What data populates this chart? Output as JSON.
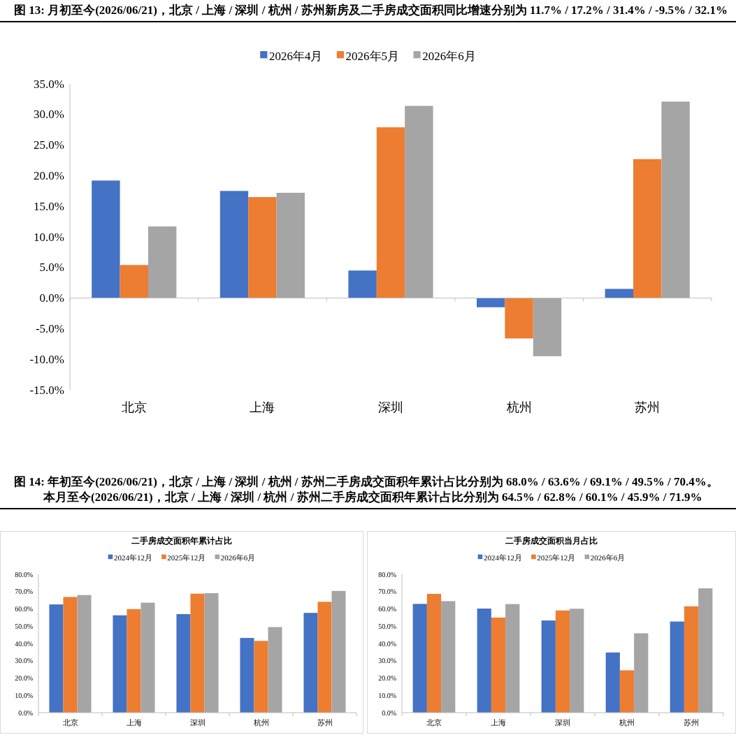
{
  "chart_data": [
    {
      "type": "bar",
      "title": "图 13: 月初至今(2026/06/21)，北京 / 上海 / 深圳 / 杭州 / 苏州新房及二手房成交面积同比增速分别为 11.7% / 17.2% / 31.4% / -9.5% / 32.1%",
      "categories": [
        "北京",
        "上海",
        "深圳",
        "杭州",
        "苏州"
      ],
      "series": [
        {
          "name": "2026年4月",
          "color": "#4472c4",
          "values": [
            19.2,
            17.5,
            4.5,
            -1.5,
            1.5
          ]
        },
        {
          "name": "2026年5月",
          "color": "#ed7d31",
          "values": [
            5.4,
            16.5,
            27.9,
            -6.6,
            22.7
          ]
        },
        {
          "name": "2026年6月",
          "color": "#a5a5a5",
          "values": [
            11.7,
            17.2,
            31.4,
            -9.5,
            32.1
          ]
        }
      ],
      "ylim": [
        -15,
        35
      ],
      "yticks": [
        {
          "value": -15,
          "label": "-15.0%"
        },
        {
          "value": -10,
          "label": "-10.0%"
        },
        {
          "value": -5,
          "label": "-5.0%"
        },
        {
          "value": 0,
          "label": "0.0%"
        },
        {
          "value": 5,
          "label": "5.0%"
        },
        {
          "value": 10,
          "label": "10.0%"
        },
        {
          "value": 15,
          "label": "15.0%"
        },
        {
          "value": 20,
          "label": "20.0%"
        },
        {
          "value": 25,
          "label": "25.0%"
        },
        {
          "value": 30,
          "label": "30.0%"
        },
        {
          "value": 35,
          "label": "35.0%"
        }
      ],
      "legend": "top"
    },
    {
      "type": "bar",
      "title": "图 14: 年初至今(2026/06/21)，北京 / 上海 / 深圳 / 杭州 / 苏州二手房成交面积年累计占比分别为 68.0% / 63.6% / 69.1% / 49.5% / 70.4%。本月至今(2026/06/21)，北京 / 上海 / 深圳 / 杭州 / 苏州二手房成交面积年累计占比分别为 64.5% / 62.8% / 60.1% / 45.9% / 71.9%",
      "subtitle": "二手房成交面积年累计占比",
      "categories": [
        "北京",
        "上海",
        "深圳",
        "杭州",
        "苏州"
      ],
      "series": [
        {
          "name": "2024年12月",
          "color": "#4472c4",
          "values": [
            62.6,
            56.3,
            57.0,
            43.2,
            57.7
          ]
        },
        {
          "name": "2025年12月",
          "color": "#ed7d31",
          "values": [
            66.9,
            59.9,
            68.8,
            41.5,
            64.1
          ]
        },
        {
          "name": "2026年6月",
          "color": "#a5a5a5",
          "values": [
            68.0,
            63.6,
            69.1,
            49.5,
            70.4
          ]
        }
      ],
      "ylim": [
        0,
        80
      ],
      "yticks": [
        {
          "value": 0,
          "label": "0.0%"
        },
        {
          "value": 10,
          "label": "10.0%"
        },
        {
          "value": 20,
          "label": "20.0%"
        },
        {
          "value": 30,
          "label": "30.0%"
        },
        {
          "value": 40,
          "label": "40.0%"
        },
        {
          "value": 50,
          "label": "50.0%"
        },
        {
          "value": 60,
          "label": "60.0%"
        },
        {
          "value": 70,
          "label": "70.0%"
        },
        {
          "value": 80,
          "label": "80.0%"
        }
      ],
      "grid": false,
      "legend": "top"
    },
    {
      "type": "bar",
      "title": "二手房成交面积当月占比",
      "categories": [
        "北京",
        "上海",
        "深圳",
        "杭州",
        "苏州"
      ],
      "series": [
        {
          "name": "2024年12月",
          "color": "#4472c4",
          "values": [
            62.9,
            60.2,
            53.3,
            34.8,
            52.7
          ]
        },
        {
          "name": "2025年12月",
          "color": "#ed7d31",
          "values": [
            68.7,
            55.0,
            59.1,
            24.5,
            61.5
          ]
        },
        {
          "name": "2026年6月",
          "color": "#a5a5a5",
          "values": [
            64.5,
            62.8,
            60.1,
            45.9,
            71.9
          ]
        }
      ],
      "ylim": [
        0,
        80
      ],
      "yticks": [
        {
          "value": 0,
          "label": "0.0%"
        },
        {
          "value": 10,
          "label": "10.0%"
        },
        {
          "value": 20,
          "label": "20.0%"
        },
        {
          "value": 30,
          "label": "30.0%"
        },
        {
          "value": 40,
          "label": "40.0%"
        },
        {
          "value": 50,
          "label": "50.0%"
        },
        {
          "value": 60,
          "label": "60.0%"
        },
        {
          "value": 70,
          "label": "70.0%"
        },
        {
          "value": 80,
          "label": "80.0%"
        }
      ],
      "grid": false,
      "legend": "top"
    }
  ]
}
